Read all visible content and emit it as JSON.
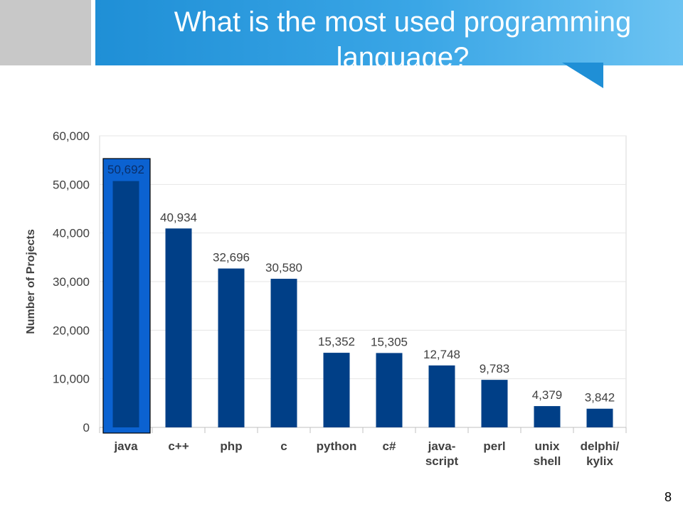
{
  "slide": {
    "title": "What is the most used programming language?",
    "page_number": "8"
  },
  "chart_data": {
    "type": "bar",
    "categories": [
      "java",
      "c++",
      "php",
      "c",
      "python",
      "c#",
      "java-\nscript",
      "perl",
      "unix\nshell",
      "delphi/\nkylix"
    ],
    "values": [
      50692,
      40934,
      32696,
      30580,
      15352,
      15305,
      12748,
      9783,
      4379,
      3842
    ],
    "value_labels": [
      "50,692",
      "40,934",
      "32,696",
      "30,580",
      "15,352",
      "15,305",
      "12,748",
      "9,783",
      "4,379",
      "3,842"
    ],
    "ylabel": "Number of Projects",
    "ylim": [
      0,
      60000
    ],
    "yticks": [
      "0",
      "10,000",
      "20,000",
      "30,000",
      "40,000",
      "50,000",
      "60,000"
    ],
    "grid": true,
    "highlighted_category": "java",
    "colors": {
      "bar": "#003f87",
      "highlight": "#0b62d1",
      "grid": "#e6e6e6"
    }
  }
}
